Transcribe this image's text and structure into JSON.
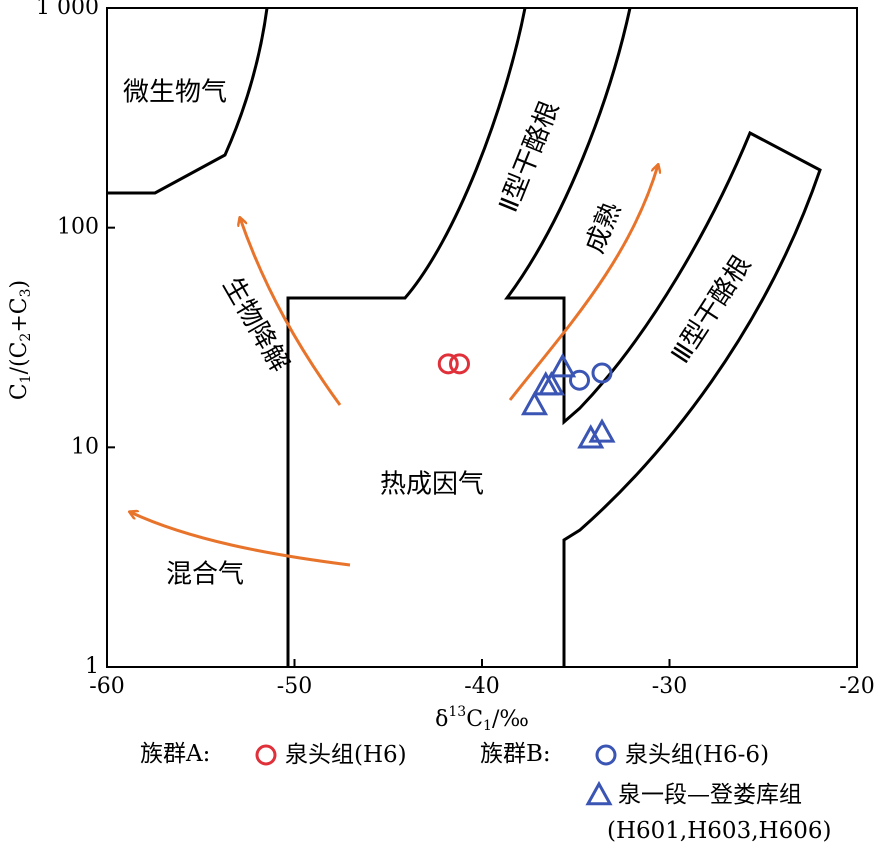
{
  "chart_data": {
    "type": "scatter",
    "xlabel": [
      "δ",
      "13",
      "C",
      "1",
      "/‰"
    ],
    "ylabel": [
      "C",
      "1",
      "/(C",
      "2",
      "+C",
      "3",
      ")"
    ],
    "xlim": [
      -60,
      -20
    ],
    "xticks": [
      -60,
      -50,
      -40,
      -30,
      -20
    ],
    "ylim": [
      1,
      1000
    ],
    "yscale": "log",
    "yticks": [
      1,
      10,
      100,
      {
        "value": 1000,
        "label": "1 000"
      }
    ],
    "region_labels": [
      "微生物气",
      "Ⅱ型干酪根",
      "成熟",
      "Ⅲ型干酪根",
      "生物降解",
      "热成因气",
      "混合气"
    ],
    "series": [
      {
        "group": "族群A:",
        "name": "泉头组(H6)",
        "marker": "circle",
        "color": "#e0303a",
        "x": [
          -41.8,
          -41.2
        ],
        "y": [
          24,
          24
        ]
      },
      {
        "group": "族群B:",
        "name": "泉头组(H6-6)",
        "marker": "circle",
        "color": "#3a55b4",
        "x": [
          -34.8,
          -33.6
        ],
        "y": [
          20.2,
          21.8
        ]
      },
      {
        "name": "泉一段—登娄库组",
        "name_cont": "(H601,H603,H606)",
        "marker": "triangle",
        "color": "#3a55b4",
        "x": [
          -37.2,
          -36.6,
          -36.3,
          -35.7,
          -34.2,
          -33.6
        ],
        "y": [
          15.6,
          19.2,
          19.2,
          23.2,
          11.0,
          11.7
        ]
      }
    ]
  }
}
